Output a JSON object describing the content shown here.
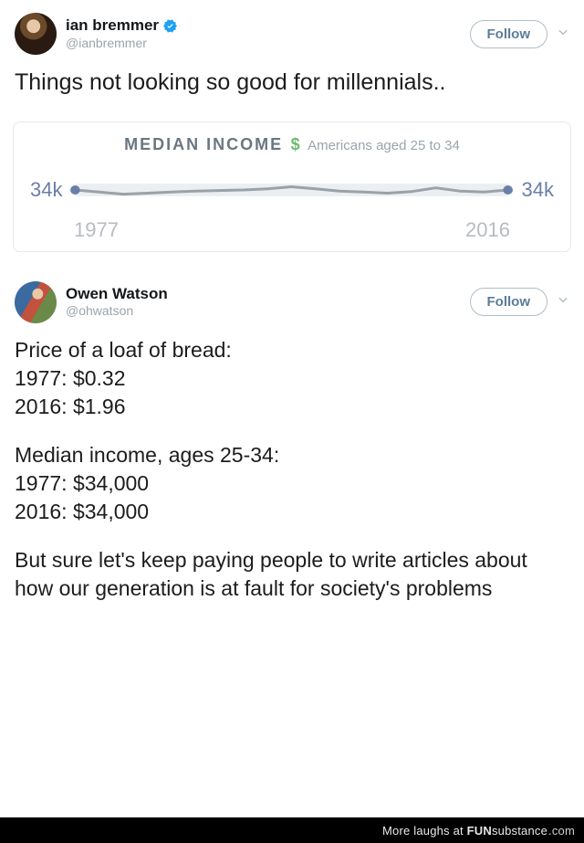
{
  "tweet1": {
    "author_name": "ian bremmer",
    "author_handle": "@ianbremmer",
    "verified": true,
    "follow_label": "Follow",
    "text": "Things not looking so good for millennials.."
  },
  "chart": {
    "type": "line",
    "title": "MEDIAN INCOME",
    "currency_symbol": "$",
    "subtitle": "Americans aged 25 to 34",
    "left_label": "34k",
    "right_label": "34k",
    "x_start": "1977",
    "x_end": "2016",
    "line_color": "#9aa2a8",
    "point_color": "#6a7fa8",
    "band_color": "#eceff1",
    "background_color": "#ffffff",
    "ylim": [
      30,
      38
    ],
    "series_y": [
      34.0,
      33.6,
      33.2,
      33.4,
      33.6,
      33.8,
      33.9,
      34.0,
      34.2,
      34.6,
      34.2,
      33.8,
      33.6,
      33.4,
      33.7,
      34.4,
      33.8,
      33.6,
      34.0
    ]
  },
  "tweet2": {
    "author_name": "Owen Watson",
    "author_handle": "@ohwatson",
    "follow_label": "Follow",
    "paragraphs": [
      "Price of a loaf of bread:\n1977: $0.32\n2016: $1.96",
      "Median income, ages 25-34:\n1977: $34,000\n2016: $34,000",
      "But sure let's keep paying people to write articles about how our generation is at fault for society's problems"
    ]
  },
  "footer": {
    "lead": "More laughs at",
    "brand_bold": "FUN",
    "brand_rest": "substance",
    "brand_tld": ".com"
  },
  "colors": {
    "verified_badge": "#1da1f2",
    "follow_text": "#5b7c9a",
    "handle": "#9aa4ad"
  }
}
